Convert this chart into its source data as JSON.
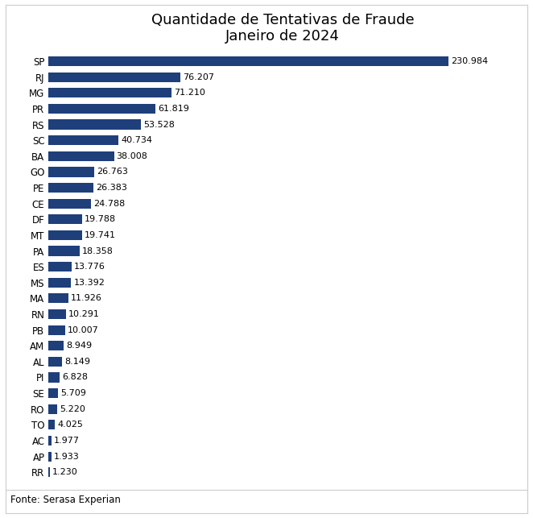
{
  "title_line1": "Quantidade de Tentativas de Fraude",
  "title_line2": "Janeiro de 2024",
  "footnote": "Fonte: Serasa Experian",
  "categories": [
    "SP",
    "RJ",
    "MG",
    "PR",
    "RS",
    "SC",
    "BA",
    "GO",
    "PE",
    "CE",
    "DF",
    "MT",
    "PA",
    "ES",
    "MS",
    "MA",
    "RN",
    "PB",
    "AM",
    "AL",
    "PI",
    "SE",
    "RO",
    "TO",
    "AC",
    "AP",
    "RR"
  ],
  "values": [
    230984,
    76207,
    71210,
    61819,
    53528,
    40734,
    38008,
    26763,
    26383,
    24788,
    19788,
    19741,
    18358,
    13776,
    13392,
    11926,
    10291,
    10007,
    8949,
    8149,
    6828,
    5709,
    5220,
    4025,
    1977,
    1933,
    1230
  ],
  "labels": [
    "230.984",
    "76.207",
    "71.210",
    "61.819",
    "53.528",
    "40.734",
    "38.008",
    "26.763",
    "26.383",
    "24.788",
    "19.788",
    "19.741",
    "18.358",
    "13.776",
    "13.392",
    "11.926",
    "10.291",
    "10.007",
    "8.949",
    "8.149",
    "6.828",
    "5.709",
    "5.220",
    "4.025",
    "1.977",
    "1.933",
    "1.230"
  ],
  "bar_color": "#1F3F7A",
  "background_color": "#FFFFFF",
  "bar_height": 0.62,
  "title_fontsize": 13,
  "label_fontsize": 8.0,
  "tick_fontsize": 8.5,
  "footnote_fontsize": 8.5
}
